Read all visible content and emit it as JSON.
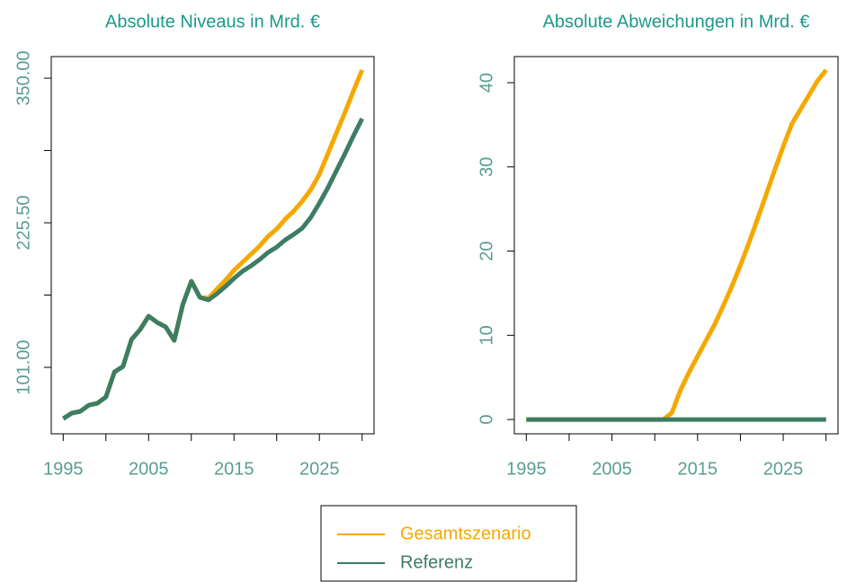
{
  "chart_data": [
    {
      "type": "line",
      "title": "Absolute Niveaus in Mrd. €",
      "x": [
        1995,
        1996,
        1997,
        1998,
        1999,
        2000,
        2001,
        2002,
        2003,
        2004,
        2005,
        2006,
        2007,
        2008,
        2009,
        2010,
        2011,
        2012,
        2013,
        2014,
        2015,
        2016,
        2017,
        2018,
        2019,
        2020,
        2021,
        2022,
        2023,
        2024,
        2025,
        2026,
        2027,
        2028,
        2029,
        2030
      ],
      "series": [
        {
          "name": "Gesamtszenario",
          "color": "#f5a800",
          "values": [
            56.9,
            61.6,
            63.1,
            68.5,
            70.1,
            75.5,
            97.1,
            101.8,
            125,
            133.5,
            145.1,
            139.7,
            135.8,
            124.2,
            155.1,
            175.2,
            161.3,
            160.6,
            168.3,
            176,
            184.5,
            191.5,
            198.4,
            205.4,
            213.9,
            220.1,
            228.6,
            235.6,
            244.1,
            254.1,
            267.3,
            285.1,
            302.9,
            320.6,
            339.2,
            357
          ]
        },
        {
          "name": "Referenz",
          "color": "#3d7d63",
          "values": [
            56.9,
            61.6,
            63.1,
            68.5,
            70.1,
            75.5,
            97.1,
            101.8,
            125,
            133.5,
            145.1,
            139.7,
            135.8,
            124.2,
            155.1,
            175.2,
            161.3,
            159,
            164.4,
            170.6,
            177.6,
            183.8,
            188.4,
            193.8,
            200,
            204.6,
            210.8,
            215.5,
            220.9,
            230.2,
            242.5,
            255.7,
            270.4,
            285.1,
            300.5,
            315.2
          ]
        }
      ],
      "xlim": [
        1993.6,
        2031.4
      ],
      "xticks": [
        1995,
        2005,
        2015,
        2025
      ],
      "xticks_minor": [
        2000,
        2010,
        2020,
        2030
      ],
      "ylim": [
        43.8,
        368.6
      ],
      "yticks": [
        {
          "value": 101,
          "label": "101.00"
        },
        {
          "value": 225.5,
          "label": "225.50"
        },
        {
          "value": 350,
          "label": "350.00"
        }
      ],
      "yticks_minor": [
        163.25,
        287.75
      ]
    },
    {
      "type": "line",
      "title": "Absolute Abweichungen in Mrd. €",
      "x": [
        1995,
        1996,
        1997,
        1998,
        1999,
        2000,
        2001,
        2002,
        2003,
        2004,
        2005,
        2006,
        2007,
        2008,
        2009,
        2010,
        2011,
        2012,
        2013,
        2014,
        2015,
        2016,
        2017,
        2018,
        2019,
        2020,
        2021,
        2022,
        2023,
        2024,
        2025,
        2026,
        2027,
        2028,
        2029,
        2030
      ],
      "series": [
        {
          "color": "#f5a800",
          "values": [
            0,
            0,
            0,
            0,
            0,
            0,
            0,
            0,
            0,
            0,
            0,
            0,
            0,
            0,
            0,
            0,
            0,
            0.8,
            3.5,
            5.6,
            7.5,
            9.4,
            11.3,
            13.5,
            15.8,
            18.3,
            21,
            23.8,
            26.7,
            29.6,
            32.4,
            35.1,
            36.8,
            38.5,
            40.2,
            41.5
          ]
        },
        {
          "color": "#3d7d63",
          "values": [
            0,
            0,
            0,
            0,
            0,
            0,
            0,
            0,
            0,
            0,
            0,
            0,
            0,
            0,
            0,
            0,
            0,
            0,
            0,
            0,
            0,
            0,
            0,
            0,
            0,
            0,
            0,
            0,
            0,
            0,
            0,
            0,
            0,
            0,
            0,
            0
          ]
        }
      ],
      "xlim": [
        1993.6,
        2031.4
      ],
      "xticks": [
        1995,
        2005,
        2015,
        2025
      ],
      "xticks_minor": [
        2000,
        2010,
        2020,
        2030
      ],
      "ylim": [
        -1.7,
        43.1
      ],
      "yticks": [
        0,
        10,
        20,
        30,
        40
      ]
    }
  ]
}
